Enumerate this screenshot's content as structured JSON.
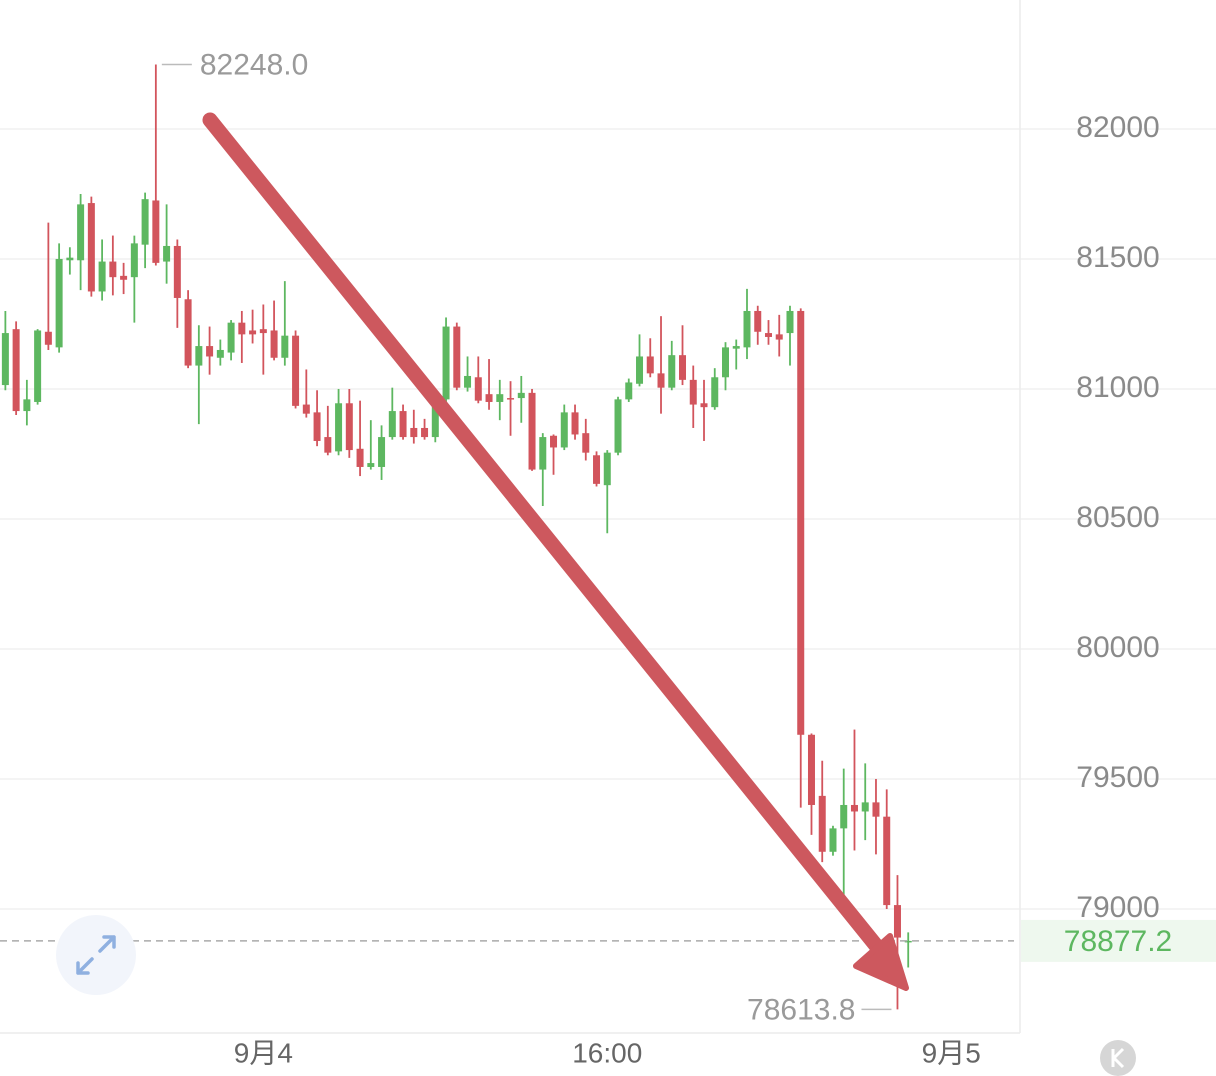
{
  "chart_data": {
    "type": "candlestick",
    "x": [
      0,
      1,
      2,
      3,
      4,
      5,
      6,
      7,
      8,
      9,
      10,
      11,
      12,
      13,
      14,
      15,
      16,
      17,
      18,
      19,
      20,
      21,
      22,
      23,
      24,
      25,
      26,
      27,
      28,
      29,
      30,
      31,
      32,
      33,
      34,
      35,
      36,
      37,
      38,
      39,
      40,
      41,
      42,
      43,
      44,
      45,
      46,
      47,
      48,
      49,
      50,
      51,
      52,
      53,
      54,
      55,
      56,
      57,
      58,
      59,
      60,
      61,
      62,
      63,
      64,
      65,
      66,
      67,
      68,
      69,
      70,
      71,
      72,
      73,
      74,
      75,
      76,
      77,
      78,
      79,
      80,
      81,
      82,
      83,
      84
    ],
    "open": [
      81015,
      81230,
      80915,
      80950,
      81220,
      81160,
      81495,
      81495,
      81715,
      81375,
      81490,
      81435,
      81430,
      81555,
      81725,
      81490,
      81550,
      81345,
      81090,
      81165,
      81120,
      81140,
      81255,
      81225,
      81230,
      81225,
      81120,
      81205,
      80940,
      80910,
      80815,
      80760,
      80945,
      80770,
      80700,
      80700,
      80815,
      80915,
      80850,
      80850,
      80815,
      80960,
      81240,
      81005,
      81045,
      80980,
      80950,
      80965,
      80965,
      80985,
      80690,
      80820,
      80775,
      80910,
      80830,
      80745,
      80630,
      80755,
      80960,
      81020,
      81125,
      81060,
      81005,
      81130,
      81035,
      80945,
      80930,
      81045,
      81155,
      81160,
      81300,
      81215,
      81210,
      81215,
      81300,
      79670,
      79435,
      79220,
      79310,
      79400,
      79375,
      79410,
      79355,
      79015,
      78875
    ],
    "high": [
      81300,
      81260,
      81035,
      81230,
      81640,
      81560,
      81545,
      81750,
      81740,
      81575,
      81590,
      81485,
      81590,
      81755,
      82248,
      81710,
      81575,
      81380,
      81245,
      81240,
      81190,
      81265,
      81300,
      81305,
      81325,
      81340,
      81415,
      81225,
      81075,
      80995,
      80935,
      81000,
      81000,
      80955,
      80880,
      80860,
      81005,
      80940,
      80920,
      80885,
      80995,
      81275,
      81255,
      81125,
      81125,
      81115,
      81035,
      81030,
      81050,
      81000,
      80830,
      80825,
      80940,
      80940,
      80885,
      80760,
      80765,
      80970,
      81040,
      81210,
      81195,
      81280,
      81185,
      81245,
      81090,
      81035,
      81080,
      81180,
      81190,
      81385,
      81320,
      81265,
      81285,
      81320,
      81310,
      79675,
      79570,
      79320,
      79540,
      79690,
      79560,
      79500,
      79460,
      79130,
      78910
    ],
    "low": [
      80995,
      80900,
      80860,
      80940,
      81150,
      81140,
      81440,
      81380,
      81355,
      81340,
      81360,
      81365,
      81255,
      81465,
      81475,
      81405,
      81235,
      81080,
      80865,
      81055,
      81090,
      81110,
      81100,
      81175,
      81055,
      81110,
      81090,
      80925,
      80890,
      80780,
      80745,
      80745,
      80735,
      80665,
      80690,
      80650,
      80805,
      80805,
      80790,
      80805,
      80795,
      80940,
      80995,
      80990,
      80945,
      80920,
      80880,
      80820,
      80870,
      80685,
      80550,
      80670,
      80765,
      80805,
      80725,
      80625,
      80445,
      80745,
      80950,
      81010,
      81045,
      80905,
      80995,
      81015,
      80850,
      80800,
      80920,
      80995,
      81075,
      81115,
      81170,
      81170,
      81125,
      81090,
      79390,
      79285,
      79180,
      79205,
      79015,
      79225,
      79265,
      79210,
      79000,
      78613.8,
      78775
    ],
    "close": [
      81215,
      80915,
      80960,
      81225,
      81170,
      81500,
      81505,
      81710,
      81375,
      81490,
      81430,
      81420,
      81560,
      81730,
      81485,
      81550,
      81350,
      81090,
      81165,
      81125,
      81150,
      81255,
      81210,
      81210,
      81215,
      81120,
      81205,
      80935,
      80905,
      80800,
      80755,
      80945,
      80765,
      80700,
      80715,
      80815,
      80915,
      80815,
      80815,
      80815,
      80960,
      81240,
      81005,
      81050,
      80955,
      80950,
      80980,
      80960,
      80985,
      80690,
      80815,
      80775,
      80910,
      80825,
      80755,
      80635,
      80755,
      80960,
      81025,
      81125,
      81060,
      81005,
      81130,
      81035,
      80940,
      80930,
      81045,
      81160,
      81165,
      81300,
      81220,
      81200,
      81190,
      81300,
      79670,
      79400,
      79220,
      79310,
      79400,
      79375,
      79410,
      79355,
      79015,
      78890,
      78877.2
    ],
    "up_color": "#5db760",
    "down_color": "#d2545c",
    "ylim": [
      78523,
      82496
    ],
    "yticks": [
      79000,
      79500,
      80000,
      80500,
      81000,
      81500,
      82000
    ],
    "xlim": [
      -0.5,
      94.4
    ],
    "xticks": [
      {
        "value": 24,
        "label": "9月4"
      },
      {
        "value": 56,
        "label": "16:00"
      },
      {
        "value": 88,
        "label": "9月5"
      }
    ],
    "grid": true,
    "high_label": {
      "value": 82248,
      "label": "82248.0"
    },
    "low_label": {
      "value": 78613.8,
      "label": "78613.8"
    },
    "last_price": {
      "value": 78877.2,
      "label": "78877.2"
    }
  }
}
